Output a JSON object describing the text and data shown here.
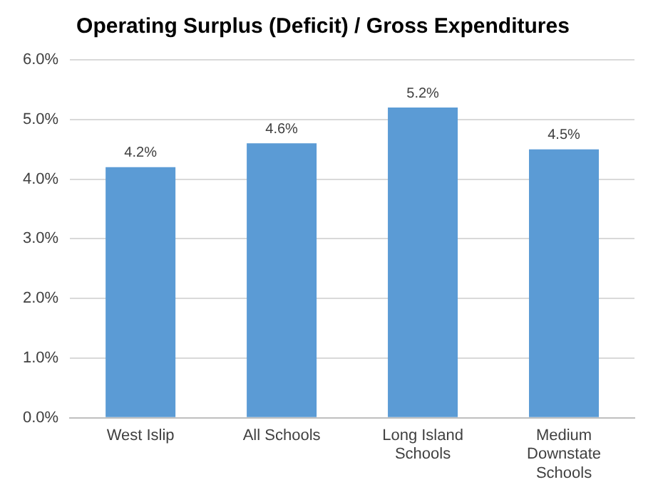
{
  "chart_data": {
    "type": "bar",
    "title": "Operating Surplus (Deficit) / Gross Expenditures",
    "categories": [
      "West Islip",
      "All Schools",
      "Long Island Schools",
      "Medium Downstate Schools"
    ],
    "values": [
      4.2,
      4.6,
      5.2,
      4.5
    ],
    "value_labels": [
      "4.2%",
      "4.6%",
      "5.2%",
      "4.5%"
    ],
    "color": "#5b9bd5",
    "ylim": [
      0,
      6
    ],
    "yticks": [
      {
        "value": 0,
        "label": "0.0%"
      },
      {
        "value": 1,
        "label": "1.0%"
      },
      {
        "value": 2,
        "label": "2.0%"
      },
      {
        "value": 3,
        "label": "3.0%"
      },
      {
        "value": 4,
        "label": "4.0%"
      },
      {
        "value": 5,
        "label": "5.0%"
      },
      {
        "value": 6,
        "label": "6.0%"
      }
    ],
    "grid": "y",
    "legend": false
  }
}
